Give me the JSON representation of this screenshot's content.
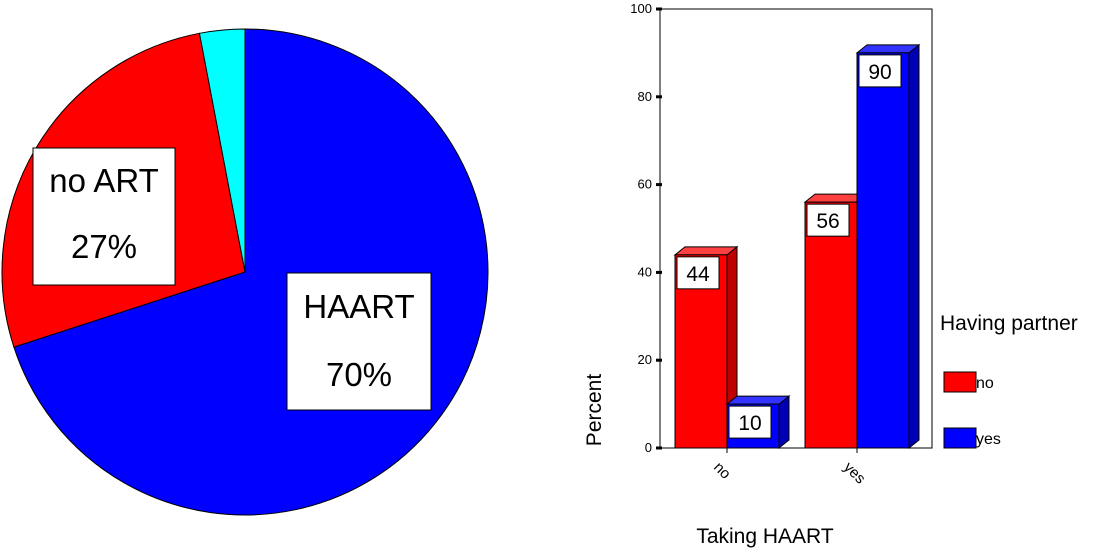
{
  "colors": {
    "red": "#ff0000",
    "blue": "#0000ff",
    "cyan": "#00ffff",
    "red_side": "#c00000",
    "blue_side": "#0000b4",
    "red_top": "#ff4040",
    "blue_top": "#3333ff"
  },
  "chart_data": [
    {
      "type": "pie",
      "slices": [
        {
          "label": "HAART",
          "value": 70,
          "value_label": "70%",
          "color": "#0000ff"
        },
        {
          "label": "no ART",
          "value": 27,
          "value_label": "27%",
          "color": "#ff0000"
        },
        {
          "label": "",
          "value": 3,
          "value_label": "",
          "color": "#00ffff"
        }
      ]
    },
    {
      "type": "bar",
      "categories": [
        "no",
        "yes"
      ],
      "series": [
        {
          "name": "no",
          "values": [
            44,
            56
          ],
          "value_labels": [
            "44",
            "56"
          ],
          "color": "#ff0000"
        },
        {
          "name": "yes",
          "values": [
            10,
            90
          ],
          "value_labels": [
            "10",
            "90"
          ],
          "color": "#0000ff"
        }
      ],
      "xlabel": "Taking HAART",
      "ylabel": "Percent",
      "ylim": [
        0,
        100
      ],
      "yticks": [
        0,
        20,
        40,
        60,
        80,
        100
      ],
      "grid": false,
      "legend_title": "Having partner",
      "legend_position": "right"
    }
  ]
}
